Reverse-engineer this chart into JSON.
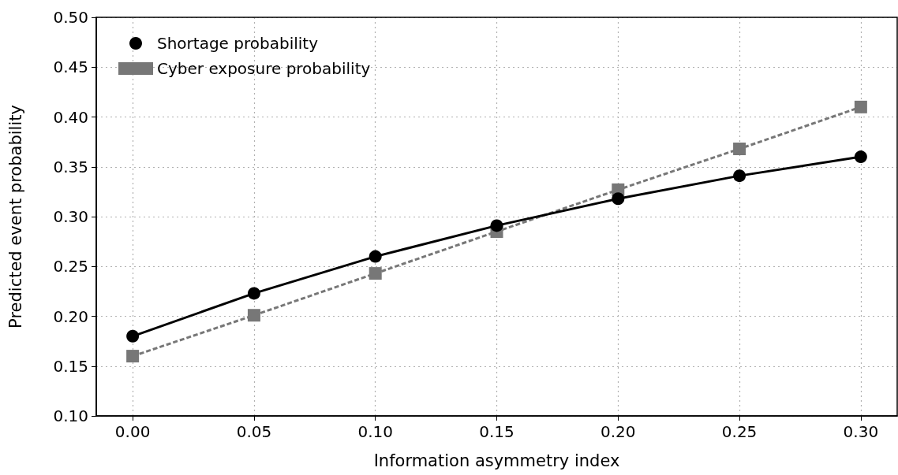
{
  "chart_data": {
    "type": "line",
    "xlabel": "Information asymmetry index",
    "ylabel": "Predicted event probability",
    "x": [
      0,
      0.05,
      0.1,
      0.15,
      0.2,
      0.25,
      0.3
    ],
    "series": [
      {
        "name": "Shortage probability",
        "color": "#000000",
        "marker": "circle",
        "line_style": "solid",
        "values": [
          0.18,
          0.223,
          0.26,
          0.291,
          0.318,
          0.341,
          0.36
        ]
      },
      {
        "name": "Cyber exposure probability",
        "color": "#777777",
        "marker": "square",
        "line_style": "dashed",
        "values": [
          0.16,
          0.201,
          0.243,
          0.285,
          0.327,
          0.368,
          0.41
        ]
      }
    ],
    "xlim": [
      -0.015,
      0.315
    ],
    "xticks": [
      {
        "value": 0,
        "label": "0.00"
      },
      {
        "value": 0.05,
        "label": "0.05"
      },
      {
        "value": 0.1,
        "label": "0.10"
      },
      {
        "value": 0.15,
        "label": "0.15"
      },
      {
        "value": 0.2,
        "label": "0.20"
      },
      {
        "value": 0.25,
        "label": "0.25"
      },
      {
        "value": 0.3,
        "label": "0.30"
      }
    ],
    "ylim": [
      0.1,
      0.5
    ],
    "yticks": [
      {
        "value": 0.1,
        "label": "0.10"
      },
      {
        "value": 0.15,
        "label": "0.15"
      },
      {
        "value": 0.2,
        "label": "0.20"
      },
      {
        "value": 0.25,
        "label": "0.25"
      },
      {
        "value": 0.3,
        "label": "0.30"
      },
      {
        "value": 0.35,
        "label": "0.35"
      },
      {
        "value": 0.4,
        "label": "0.40"
      },
      {
        "value": 0.45,
        "label": "0.45"
      },
      {
        "value": 0.5,
        "label": "0.50"
      }
    ],
    "grid": true,
    "legend": "top left"
  }
}
